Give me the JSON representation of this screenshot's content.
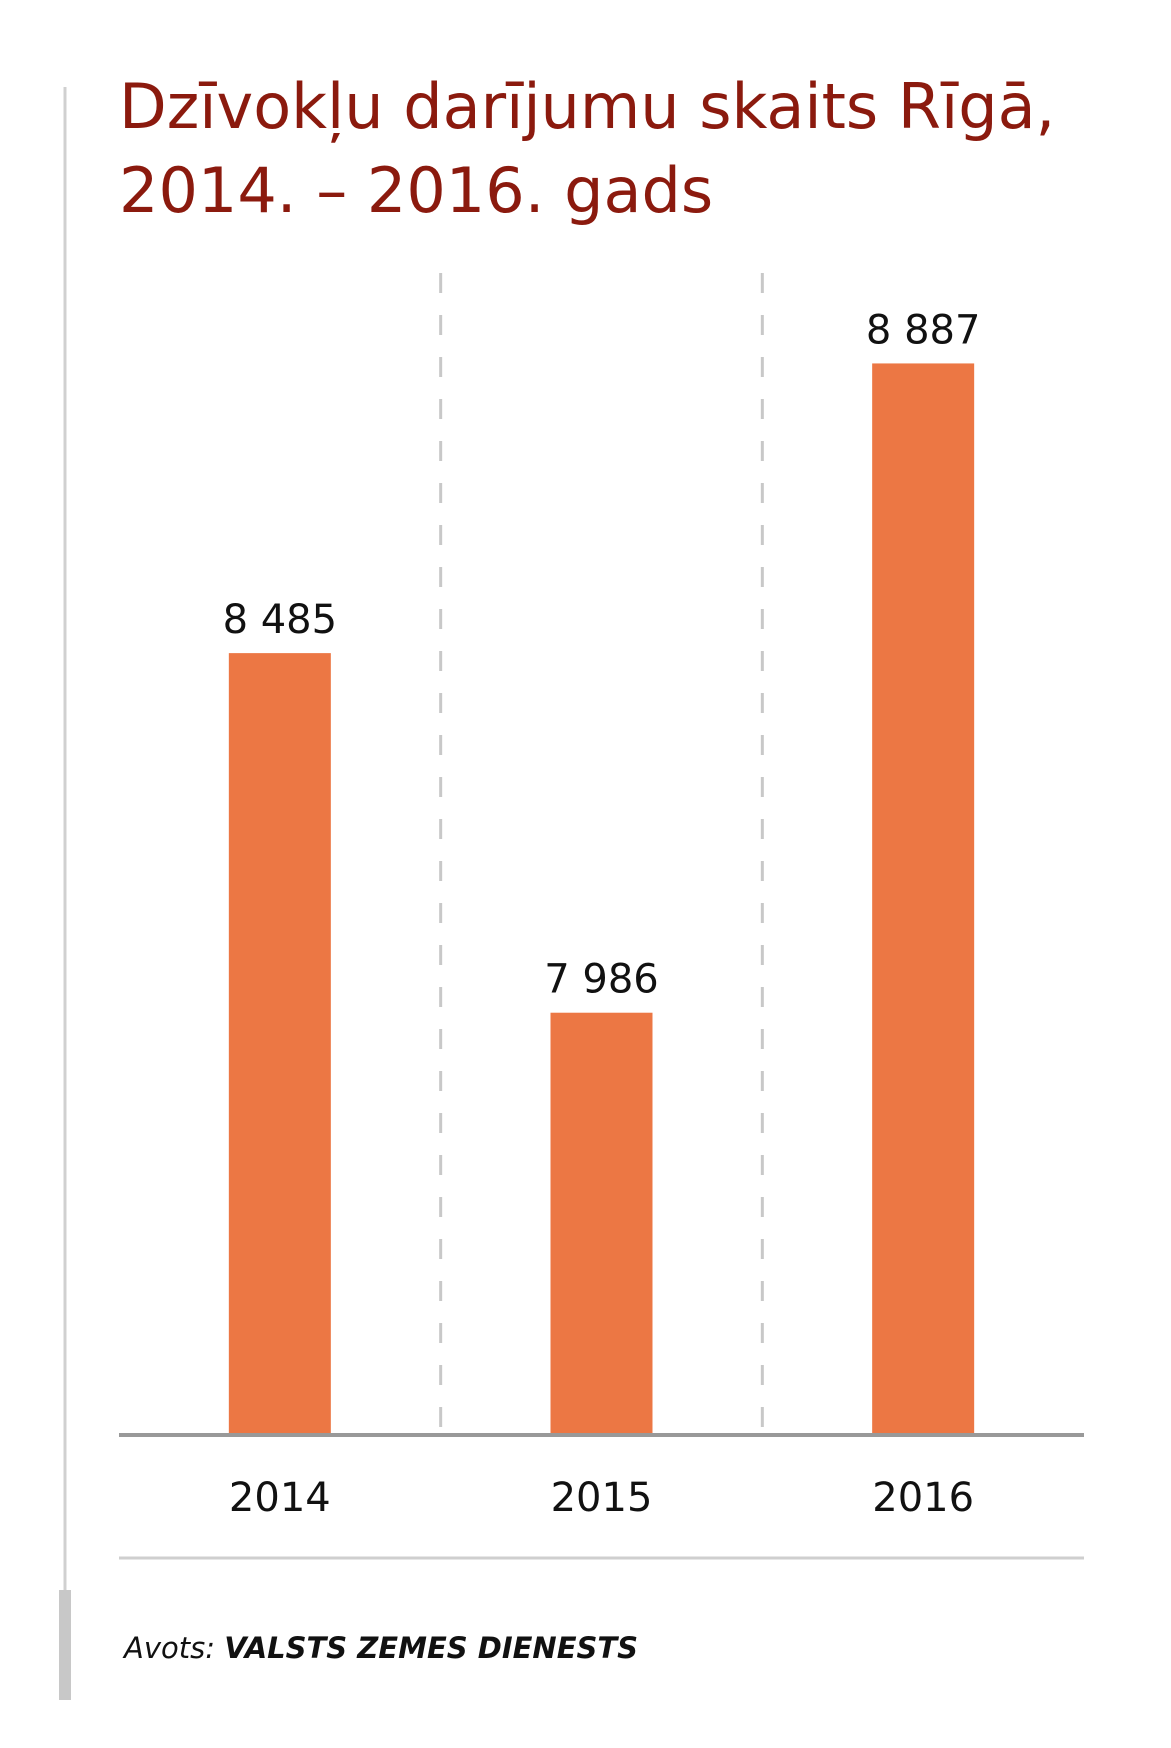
{
  "chart_data": {
    "type": "bar",
    "title": [
      "Dzīvokļu darījumu skaits Rīgā,",
      "2014. – 2016. gads"
    ],
    "categories": [
      "2014",
      "2015",
      "2016"
    ],
    "values": [
      8485,
      7986,
      8887
    ],
    "value_labels": [
      "8 485",
      "7 986",
      "8 887"
    ],
    "color": "#ec7744",
    "ylim": [
      7400,
      9000
    ],
    "source_label": "Avots:",
    "source_text": "VALSTS ZEMES DIENESTS"
  }
}
